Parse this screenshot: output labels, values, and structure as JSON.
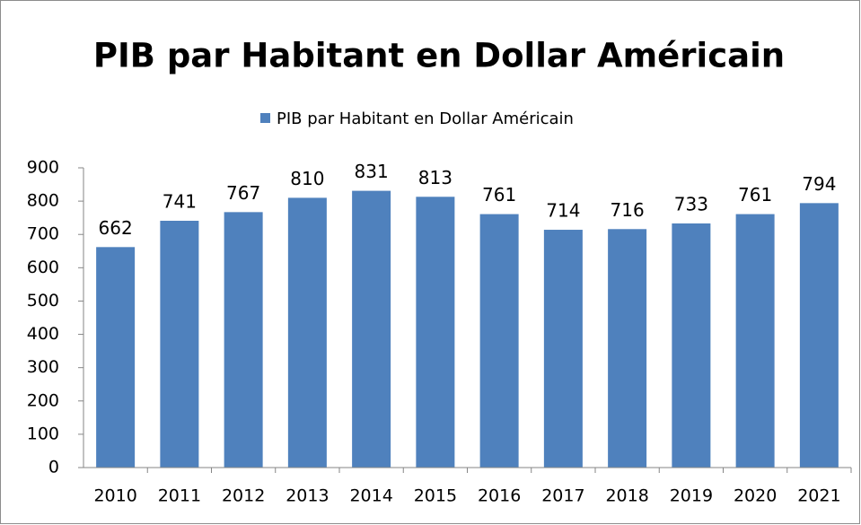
{
  "chart_data": {
    "type": "bar",
    "title": "PIB par Habitant en Dollar Américain",
    "categories": [
      "2010",
      "2011",
      "2012",
      "2013",
      "2014",
      "2015",
      "2016",
      "2017",
      "2018",
      "2019",
      "2020",
      "2021"
    ],
    "series": [
      {
        "name": "PIB par Habitant en Dollar Américain",
        "color": "#4f81bd",
        "values": [
          662,
          741,
          767,
          810,
          831,
          813,
          761,
          714,
          716,
          733,
          761,
          794
        ]
      }
    ],
    "ylim": [
      0,
      900
    ],
    "yticks": [
      0,
      100,
      200,
      300,
      400,
      500,
      600,
      700,
      800,
      900
    ],
    "grid": false,
    "legend": "top",
    "data_labels": true
  }
}
